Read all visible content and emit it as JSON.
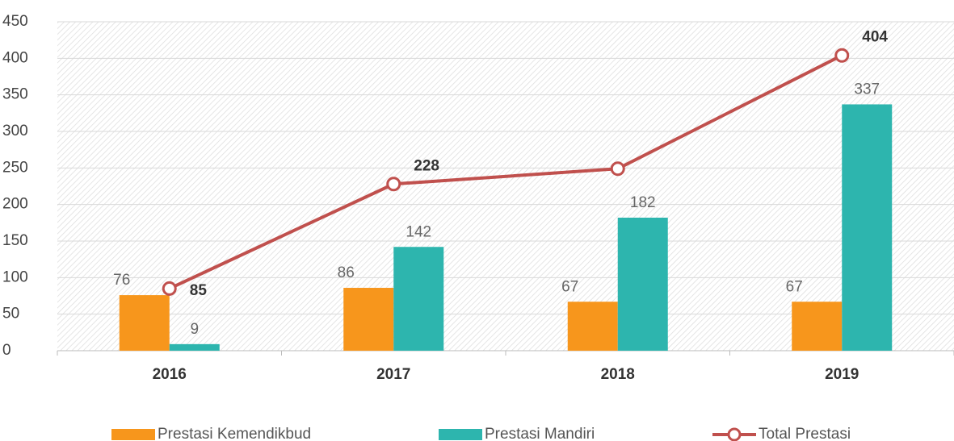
{
  "chart_data": {
    "type": "bar_line",
    "categories": [
      "2016",
      "2017",
      "2018",
      "2019"
    ],
    "series": [
      {
        "name": "Prestasi Kemendikbud",
        "color": "#f7961c",
        "type": "bar",
        "values": [
          76,
          86,
          67,
          67
        ]
      },
      {
        "name": "Prestasi Mandiri",
        "color": "#2db5ae",
        "type": "bar",
        "values": [
          9,
          142,
          182,
          337
        ]
      },
      {
        "name": "Total Prestasi",
        "color": "#c0504d",
        "type": "line",
        "values": [
          85,
          228,
          249,
          404
        ],
        "value_labels": [
          85,
          228,
          null,
          404
        ]
      }
    ],
    "ylim": [
      0,
      450
    ],
    "yticks": [
      0,
      50,
      100,
      150,
      200,
      250,
      300,
      350,
      400,
      450
    ],
    "grid": true,
    "legend": "bottom"
  }
}
